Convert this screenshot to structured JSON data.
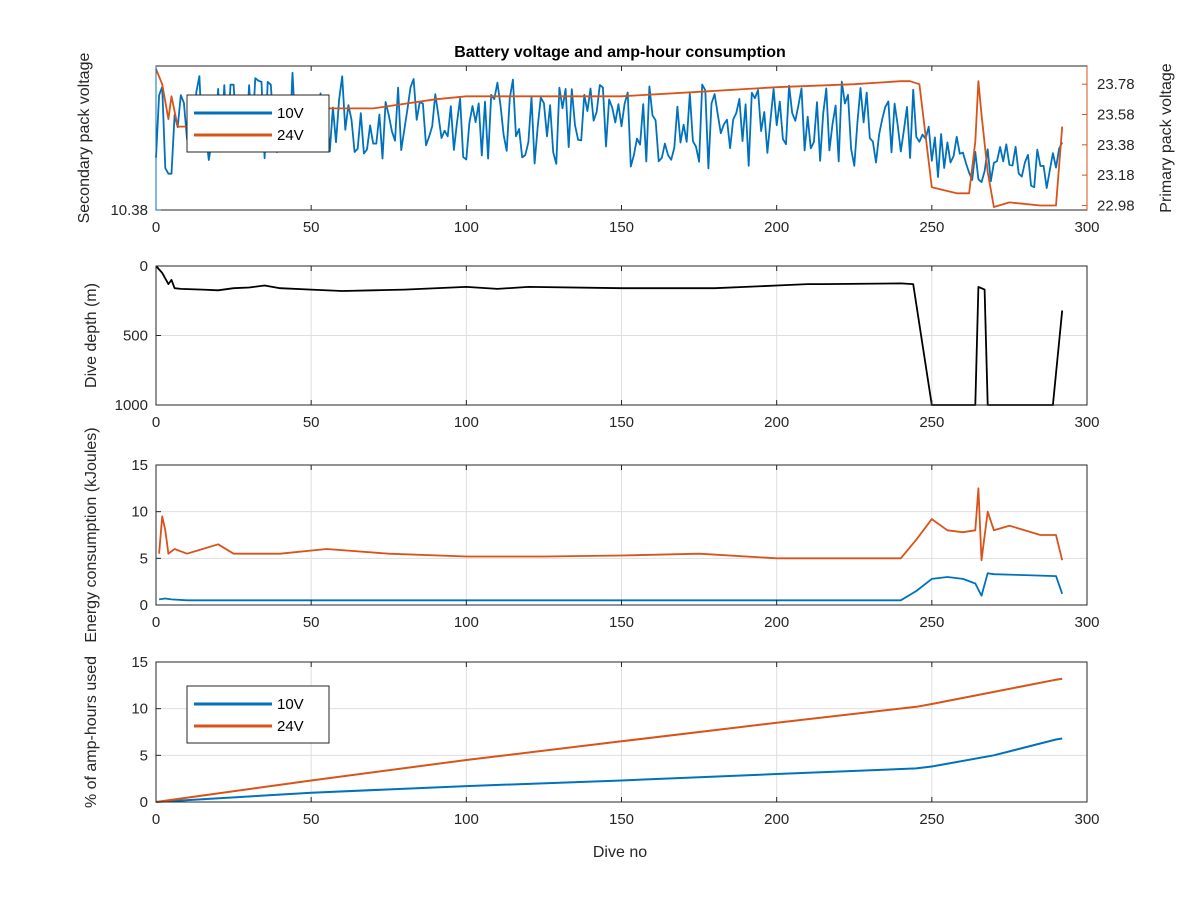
{
  "figure": {
    "title": "Battery voltage and amp-hour consumption",
    "xlabel": "Dive no"
  },
  "colors": {
    "blue": "#0072bd",
    "orange": "#d95319",
    "black": "#000000"
  },
  "chart_data": [
    {
      "type": "line",
      "title": "Battery voltage and amp-hour consumption",
      "xlabel": "",
      "ylabel_left": "Secondary pack voltage",
      "ylabel_right": "Primary pack voltage",
      "xlim": [
        0,
        300
      ],
      "xticks": [
        0,
        50,
        100,
        150,
        200,
        250,
        300
      ],
      "ylim_left": [
        10.38,
        10.66
      ],
      "yticks_left": [
        10.38
      ],
      "ylim_right": [
        22.95,
        23.9
      ],
      "yticks_right": [
        22.98,
        23.18,
        23.38,
        23.58,
        23.78
      ],
      "grid": false,
      "legend": {
        "position": "top-left",
        "entries": [
          "10V",
          "24V"
        ]
      },
      "series": [
        {
          "name": "10V",
          "axis": "left",
          "color": "#0072bd",
          "style": "noisy",
          "x": [
            0,
            3,
            6,
            12,
            25,
            40,
            55,
            75,
            100,
            120,
            150,
            175,
            200,
            225,
            240,
            247,
            250,
            258,
            265,
            272,
            280,
            288,
            292
          ],
          "y": [
            10.55,
            10.54,
            10.52,
            10.56,
            10.55,
            10.56,
            10.57,
            10.55,
            10.56,
            10.55,
            10.55,
            10.54,
            10.55,
            10.55,
            10.55,
            10.55,
            10.49,
            10.48,
            10.48,
            10.48,
            10.47,
            10.46,
            10.55
          ]
        },
        {
          "name": "24V",
          "axis": "right",
          "color": "#d95319",
          "style": "smooth",
          "x": [
            0,
            2,
            4,
            5,
            7,
            10,
            15,
            20,
            30,
            50,
            70,
            90,
            100,
            120,
            150,
            175,
            200,
            225,
            240,
            243,
            246,
            250,
            254,
            258,
            262,
            264,
            265,
            266,
            268,
            270,
            275,
            285,
            290,
            292
          ],
          "y": [
            23.88,
            23.78,
            23.55,
            23.7,
            23.5,
            23.5,
            23.53,
            23.6,
            23.58,
            23.62,
            23.62,
            23.68,
            23.7,
            23.7,
            23.7,
            23.73,
            23.76,
            23.78,
            23.8,
            23.8,
            23.78,
            23.1,
            23.08,
            23.06,
            23.06,
            23.4,
            23.8,
            23.58,
            23.2,
            22.97,
            23.0,
            22.98,
            22.98,
            23.5
          ]
        }
      ]
    },
    {
      "type": "line",
      "title": "",
      "xlabel": "",
      "ylabel": "Dive depth (m)",
      "xlim": [
        0,
        300
      ],
      "xticks": [
        0,
        50,
        100,
        150,
        200,
        250,
        300
      ],
      "ylim": [
        0,
        1000
      ],
      "yticks": [
        0,
        500,
        1000
      ],
      "y_reversed": true,
      "grid": true,
      "series": [
        {
          "color": "#000000",
          "x": [
            0,
            2,
            4,
            5,
            6,
            8,
            15,
            20,
            25,
            30,
            35,
            40,
            50,
            60,
            70,
            80,
            100,
            110,
            120,
            150,
            180,
            190,
            200,
            210,
            215,
            240,
            244,
            250,
            255,
            262,
            264,
            265,
            267,
            268,
            270,
            280,
            289,
            292
          ],
          "y": [
            0,
            50,
            130,
            100,
            160,
            165,
            170,
            175,
            160,
            155,
            140,
            160,
            170,
            180,
            175,
            170,
            150,
            165,
            150,
            160,
            160,
            150,
            140,
            130,
            130,
            125,
            130,
            1000,
            1000,
            1000,
            1000,
            150,
            170,
            1000,
            1000,
            1000,
            1000,
            320
          ]
        }
      ]
    },
    {
      "type": "line",
      "title": "",
      "xlabel": "",
      "ylabel": "Energy consumption (kJoules)",
      "xlim": [
        0,
        300
      ],
      "xticks": [
        0,
        50,
        100,
        150,
        200,
        250,
        300
      ],
      "ylim": [
        0,
        15
      ],
      "yticks": [
        0,
        5,
        10,
        15
      ],
      "grid": true,
      "series": [
        {
          "name": "10V",
          "color": "#0072bd",
          "x": [
            1,
            3,
            5,
            10,
            20,
            30,
            35,
            50,
            75,
            100,
            125,
            150,
            175,
            200,
            225,
            240,
            245,
            250,
            255,
            260,
            264,
            266,
            268,
            270,
            280,
            290,
            292
          ],
          "y": [
            0.6,
            0.7,
            0.6,
            0.5,
            0.5,
            0.5,
            0.5,
            0.5,
            0.5,
            0.5,
            0.5,
            0.5,
            0.5,
            0.5,
            0.5,
            0.5,
            1.5,
            2.8,
            3.0,
            2.8,
            2.3,
            1.0,
            3.4,
            3.3,
            3.2,
            3.1,
            1.2
          ]
        },
        {
          "name": "24V",
          "color": "#d95319",
          "x": [
            1,
            2,
            3,
            4,
            6,
            10,
            15,
            20,
            25,
            30,
            40,
            55,
            75,
            100,
            125,
            150,
            175,
            200,
            225,
            240,
            245,
            250,
            255,
            260,
            264,
            265,
            266,
            268,
            270,
            275,
            285,
            290,
            292
          ],
          "y": [
            5.5,
            9.5,
            8,
            5.5,
            6,
            5.5,
            6,
            6.5,
            5.5,
            5.5,
            5.5,
            6,
            5.5,
            5.2,
            5.2,
            5.3,
            5.5,
            5.0,
            5.0,
            5.0,
            7.0,
            9.2,
            8.0,
            7.8,
            8.0,
            12.5,
            4.8,
            10.0,
            8.0,
            8.5,
            7.5,
            7.5,
            4.8
          ]
        }
      ]
    },
    {
      "type": "line",
      "title": "",
      "xlabel": "Dive no",
      "ylabel": "% of amp-hours used",
      "xlim": [
        0,
        300
      ],
      "xticks": [
        0,
        50,
        100,
        150,
        200,
        250,
        300
      ],
      "ylim": [
        0,
        15
      ],
      "yticks": [
        0,
        5,
        10,
        15
      ],
      "grid": true,
      "legend": {
        "position": "top-left",
        "entries": [
          "10V",
          "24V"
        ]
      },
      "series": [
        {
          "name": "10V",
          "color": "#0072bd",
          "x": [
            0,
            50,
            100,
            150,
            200,
            245,
            250,
            270,
            290,
            292
          ],
          "y": [
            0,
            1.0,
            1.7,
            2.3,
            3.0,
            3.6,
            3.8,
            5.0,
            6.7,
            6.8
          ]
        },
        {
          "name": "24V",
          "color": "#d95319",
          "x": [
            0,
            50,
            100,
            150,
            200,
            245,
            250,
            270,
            290,
            292
          ],
          "y": [
            0,
            2.3,
            4.5,
            6.5,
            8.5,
            10.2,
            10.5,
            11.8,
            13.1,
            13.2
          ]
        }
      ]
    }
  ]
}
